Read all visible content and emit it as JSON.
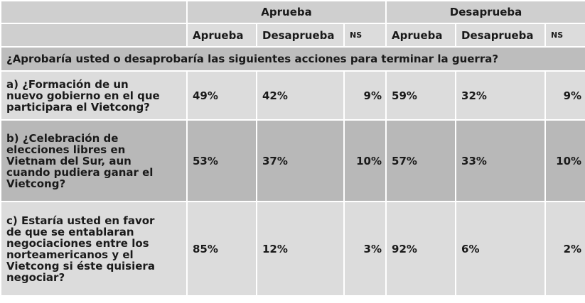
{
  "header": {
    "groups": [
      "Aprueba",
      "Desaprueba"
    ],
    "subheaders": [
      "Aprueba",
      "Desaprueba",
      "NS",
      "Aprueba",
      "Desaprueba",
      "NS"
    ]
  },
  "section_title": "¿Aprobaría usted o desaprobaría las siguientes acciones para terminar la guerra?",
  "rows": [
    {
      "question_lines": [
        "a) ¿Formación de un",
        "nuevo gobierno en el que",
        "participara el Vietcong?"
      ],
      "values": [
        "49%",
        "42%",
        "9%",
        "59%",
        "32%",
        "9%"
      ]
    },
    {
      "question_lines": [
        "b) ¿Celebración de",
        "elecciones libres en",
        "Vietnam del Sur, aun",
        "cuando pudiera ganar el",
        "Vietcong?"
      ],
      "values": [
        "53%",
        "37%",
        "10%",
        "57%",
        "33%",
        "10%"
      ]
    },
    {
      "question_lines": [
        "c) Estaría usted en favor",
        "de que se entablaran",
        "negociaciones entre los",
        "norteamericanos y el",
        "Vietcong si éste quisiera",
        "negociar?"
      ],
      "values": [
        "85%",
        "12%",
        "3%",
        "92%",
        "6%",
        "2%"
      ]
    }
  ]
}
